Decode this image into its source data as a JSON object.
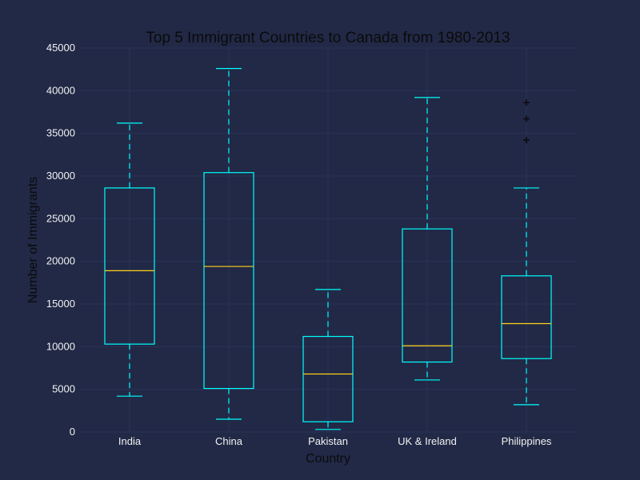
{
  "chart_data": {
    "type": "boxplot",
    "title": "Top 5 Immigrant Countries to Canada from 1980-2013",
    "xlabel": "Country",
    "ylabel": "Number of Immigrants",
    "ylim": [
      0,
      45000
    ],
    "yticks": [
      0,
      5000,
      10000,
      15000,
      20000,
      25000,
      30000,
      35000,
      40000,
      45000
    ],
    "grid": true,
    "categories": [
      "India",
      "China",
      "Pakistan",
      "UK & Ireland",
      "Philippines"
    ],
    "boxes": [
      {
        "category": "India",
        "whisker_low": 4200,
        "q1": 10300,
        "median": 18900,
        "q3": 28600,
        "whisker_high": 36200,
        "outliers": []
      },
      {
        "category": "China",
        "whisker_low": 1500,
        "q1": 5100,
        "median": 19400,
        "q3": 30400,
        "whisker_high": 42600,
        "outliers": []
      },
      {
        "category": "Pakistan",
        "whisker_low": 300,
        "q1": 1200,
        "median": 6800,
        "q3": 11200,
        "whisker_high": 16700,
        "outliers": []
      },
      {
        "category": "UK & Ireland",
        "whisker_low": 6100,
        "q1": 8200,
        "median": 10100,
        "q3": 23800,
        "whisker_high": 39200,
        "outliers": []
      },
      {
        "category": "Philippines",
        "whisker_low": 3200,
        "q1": 8600,
        "median": 12700,
        "q3": 18300,
        "whisker_high": 28600,
        "outliers": [
          34200,
          36700,
          38600
        ]
      }
    ],
    "colors": {
      "background": "#212946",
      "grid": "#2a3459",
      "box": "#00ffff",
      "median": "#ffd11a",
      "text": "#f2f2f2",
      "title_text": "#0b0b0b"
    }
  }
}
